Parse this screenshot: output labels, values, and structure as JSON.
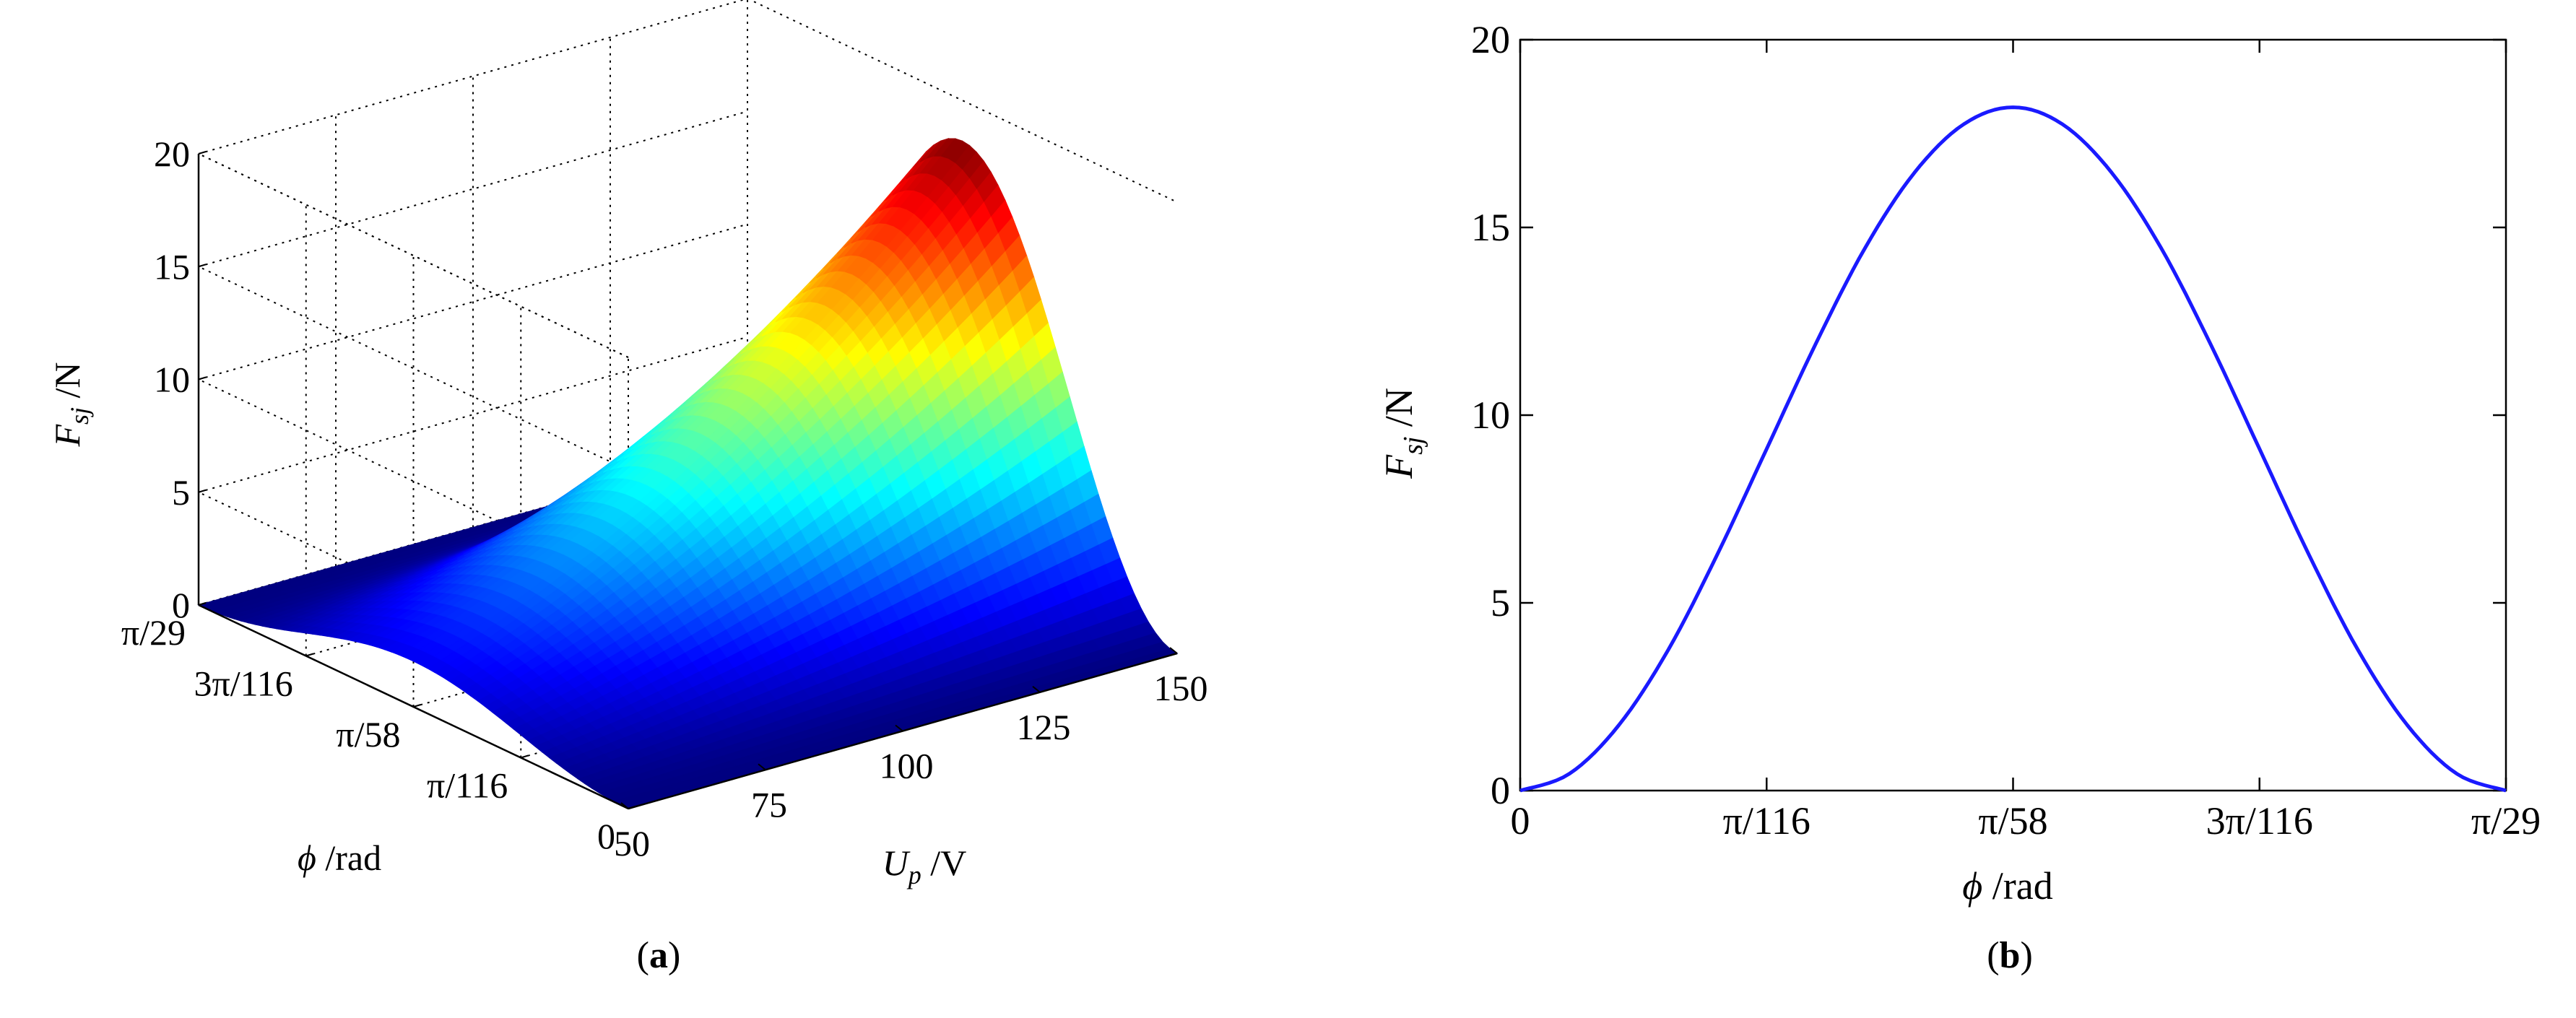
{
  "panels": {
    "a": {
      "caption_open": "(",
      "caption_letter": "a",
      "caption_close": ")"
    },
    "b": {
      "caption_open": "(",
      "caption_letter": "b",
      "caption_close": ")"
    }
  },
  "chart_data": [
    {
      "id": "a",
      "type": "surface",
      "model": "z = Fmax * (U / 150)^2 * sin^2(29 * phi)",
      "x": {
        "name": "U",
        "label_main": "U",
        "label_sub": "p",
        "label_unit": " /V",
        "range": [
          50,
          150
        ],
        "ticks": [
          50,
          75,
          100,
          125,
          150
        ],
        "tick_labels": [
          "50",
          "75",
          "100",
          "125",
          "150"
        ]
      },
      "y": {
        "name": "phi",
        "label_main": "ϕ",
        "label_unit": " /rad",
        "range": [
          "0",
          "π/29"
        ],
        "ticks": [
          0,
          0.25,
          0.5,
          0.75,
          1
        ],
        "tick_labels": [
          "0",
          "π/116",
          "π/58",
          "3π/116",
          "π/29"
        ]
      },
      "z": {
        "label_main": "F",
        "label_sub": "sj",
        "label_unit": " /N",
        "range": [
          0,
          20
        ],
        "ticks": [
          0,
          5,
          10,
          15,
          20
        ],
        "tick_labels": [
          "0",
          "5",
          "10",
          "15",
          "20"
        ]
      },
      "peak": {
        "U": 150,
        "phi": "π/58",
        "F": 18.2
      },
      "grid": true,
      "colormap": "jet"
    },
    {
      "id": "b",
      "type": "line",
      "series": [
        {
          "color": "#1a1aff",
          "x": [
            0,
            0.05,
            0.1,
            0.15,
            0.2,
            0.25,
            0.3,
            0.35,
            0.4,
            0.45,
            0.5,
            0.55,
            0.6,
            0.65,
            0.7,
            0.75,
            0.8,
            0.85,
            0.9,
            0.95,
            1
          ],
          "y": [
            0,
            0.45,
            1.74,
            3.74,
            6.29,
            9.1,
            11.91,
            14.46,
            16.46,
            17.75,
            18.2,
            17.75,
            16.46,
            14.46,
            11.91,
            9.1,
            6.29,
            3.74,
            1.74,
            0.45,
            0
          ]
        }
      ],
      "x_ticks": [
        0,
        0.25,
        0.5,
        0.75,
        1
      ],
      "x_tick_labels": [
        "0",
        "π/116",
        "π/58",
        "3π/116",
        "π/29"
      ],
      "xlim": [
        0,
        1
      ],
      "y_ticks": [
        0,
        5,
        10,
        15,
        20
      ],
      "y_tick_labels": [
        "0",
        "5",
        "10",
        "15",
        "20"
      ],
      "ylim": [
        0,
        20
      ],
      "xlabel_main": "ϕ",
      "xlabel_unit": " /rad",
      "ylabel_main": "F",
      "ylabel_sub": "sj",
      "ylabel_unit": " /N",
      "grid": false
    }
  ]
}
